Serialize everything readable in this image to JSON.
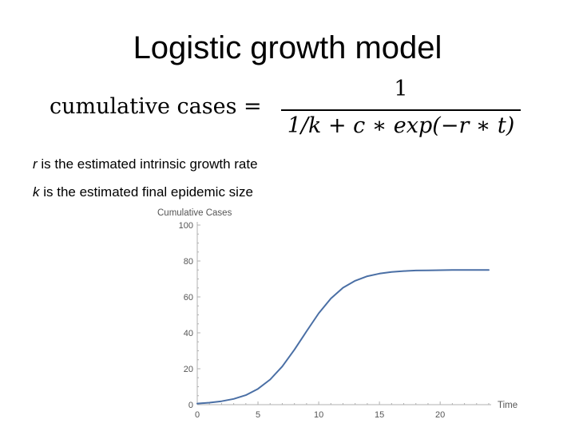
{
  "slide": {
    "title": "Logistic growth model",
    "formula": {
      "lhs": "cumulative cases =",
      "numerator": "1",
      "denominator": "1/k + c ∗ exp(−r ∗ t)"
    },
    "descriptions": [
      {
        "var": "r",
        "text": " is the estimated intrinsic growth rate"
      },
      {
        "var": "k",
        "text": " is the estimated final epidemic size"
      }
    ]
  },
  "chart_data": {
    "type": "line",
    "title": "",
    "xlabel": "Time",
    "ylabel": "Cumulative Cases",
    "xlim": [
      0,
      24
    ],
    "ylim": [
      0,
      100
    ],
    "x_ticks": [
      0,
      5,
      10,
      15,
      20
    ],
    "y_ticks": [
      0,
      20,
      40,
      60,
      80,
      100
    ],
    "grid": false,
    "line_color": "#4a6fa5",
    "series": [
      {
        "x": [
          0,
          1,
          2,
          3,
          4,
          5,
          6,
          7,
          8,
          9,
          10,
          11,
          12,
          13,
          14,
          15,
          16,
          17,
          18,
          19,
          20,
          21,
          22,
          23,
          24
        ],
        "values": [
          0.6,
          1.1,
          1.9,
          3.2,
          5.3,
          8.8,
          14.0,
          21.3,
          30.6,
          40.9,
          50.9,
          59.1,
          65.1,
          69.0,
          71.5,
          73.0,
          73.9,
          74.4,
          74.7,
          74.8,
          74.9,
          75.0,
          75.0,
          75.0,
          75.0
        ]
      }
    ]
  }
}
